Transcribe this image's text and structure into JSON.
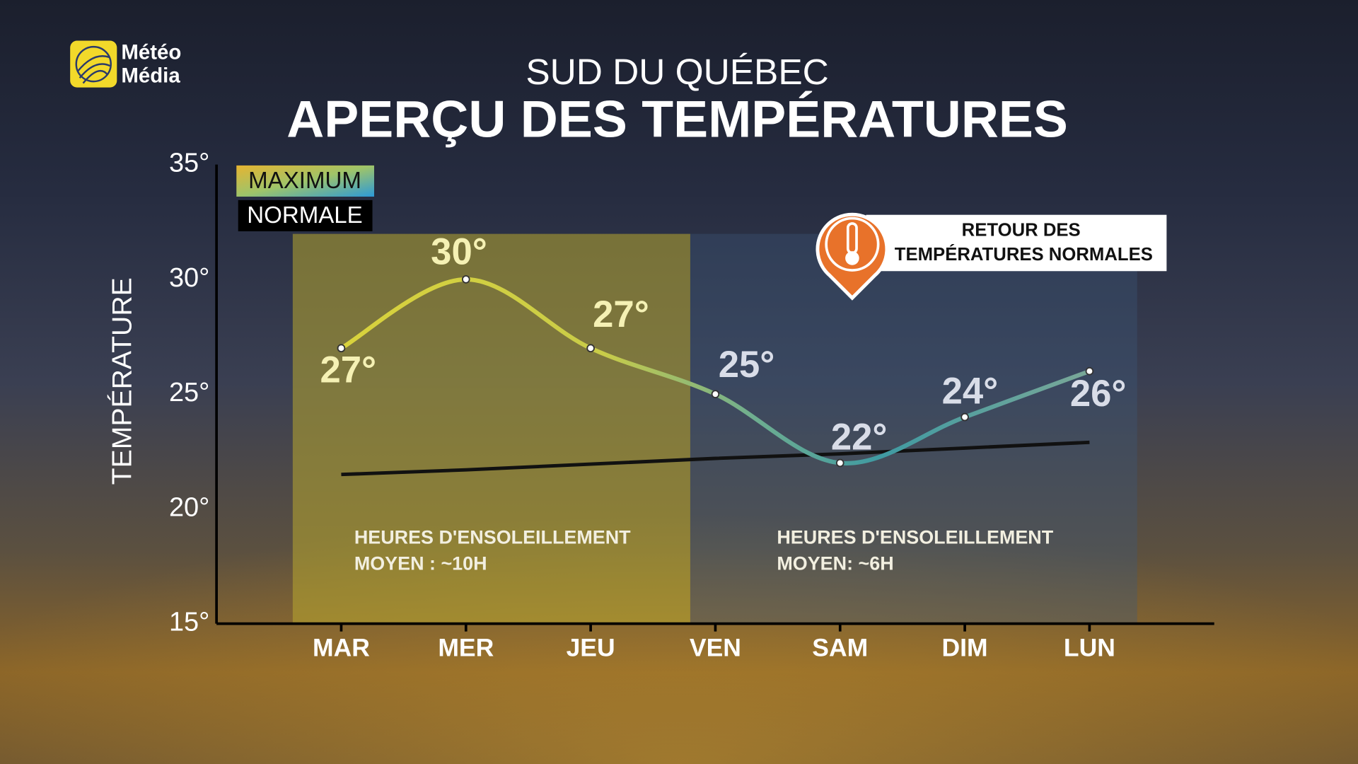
{
  "logo": [
    "Météo",
    "Média"
  ],
  "chart_data": {
    "type": "line",
    "subtitle": "SUD DU QUÉBEC",
    "title": "APERÇU DES TEMPÉRATURES",
    "y_label": "TEMPÉRATURE",
    "categories": [
      "MAR",
      "MER",
      "JEU",
      "VEN",
      "SAM",
      "DIM",
      "LUN"
    ],
    "series": [
      {
        "name": "MAXIMUM",
        "color": "#d9d23c",
        "values": [
          27,
          30,
          27,
          25,
          22,
          24,
          26
        ],
        "value_labels": [
          "27°",
          "30°",
          "27°",
          "25°",
          "22°",
          "24°",
          "26°"
        ]
      },
      {
        "name": "NORMALE",
        "color": "#111111",
        "values": [
          21.5,
          21.7,
          21.95,
          22.2,
          22.4,
          22.65,
          22.9
        ]
      }
    ],
    "ylim": [
      15,
      35
    ],
    "yticks": [
      {
        "value": 15,
        "label": "15°"
      },
      {
        "value": 20,
        "label": "20°"
      },
      {
        "value": 25,
        "label": "25°"
      },
      {
        "value": 30,
        "label": "30°"
      },
      {
        "value": 35,
        "label": "35°"
      }
    ],
    "grid": false,
    "legend": "top-left",
    "annotations": {
      "callout": [
        "RETOUR DES",
        "TEMPÉRATURES NORMALES"
      ],
      "sunshine": [
        [
          "HEURES D'ENSOLEILLEMENT",
          "MOYEN : ~10H"
        ],
        [
          "HEURES D'ENSOLEILLEMENT",
          "MOYEN: ~6H"
        ]
      ]
    }
  }
}
